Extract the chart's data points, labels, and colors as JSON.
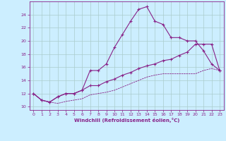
{
  "xlabel": "Windchill (Refroidissement éolien,°C)",
  "bg_color": "#cceeff",
  "grid_color": "#aacccc",
  "line_color": "#882288",
  "xlim": [
    -0.5,
    23.5
  ],
  "ylim": [
    9.5,
    26
  ],
  "xticks": [
    0,
    1,
    2,
    3,
    4,
    5,
    6,
    7,
    8,
    9,
    10,
    11,
    12,
    13,
    14,
    15,
    16,
    17,
    18,
    19,
    20,
    21,
    22,
    23
  ],
  "yticks": [
    10,
    12,
    14,
    16,
    18,
    20,
    22,
    24
  ],
  "line1_x": [
    0,
    1,
    2,
    3,
    4,
    5,
    6,
    7,
    8,
    9,
    10,
    11,
    12,
    13,
    14,
    15,
    16,
    17,
    18,
    19,
    20,
    21,
    22,
    23
  ],
  "line1_y": [
    12,
    11,
    10.7,
    11.5,
    12,
    12,
    12.5,
    15.5,
    15.5,
    16.5,
    19,
    21,
    23,
    24.8,
    25.2,
    23,
    22.5,
    20.5,
    20.5,
    20,
    20,
    18.5,
    16.5,
    15.5
  ],
  "line2_x": [
    0,
    1,
    2,
    3,
    4,
    5,
    6,
    7,
    8,
    9,
    10,
    11,
    12,
    13,
    14,
    15,
    16,
    17,
    18,
    19,
    20,
    21,
    22,
    23
  ],
  "line2_y": [
    12,
    11,
    10.7,
    11.5,
    12,
    12,
    12.5,
    13.2,
    13.2,
    13.8,
    14.2,
    14.8,
    15.2,
    15.8,
    16.2,
    16.5,
    17,
    17.2,
    17.8,
    18.3,
    19.5,
    19.5,
    19.5,
    15.5
  ],
  "line3_x": [
    0,
    1,
    2,
    3,
    4,
    5,
    6,
    7,
    8,
    9,
    10,
    11,
    12,
    13,
    14,
    15,
    16,
    17,
    18,
    19,
    20,
    21,
    22,
    23
  ],
  "line3_y": [
    12,
    11,
    10.7,
    10.5,
    10.8,
    11,
    11.2,
    11.8,
    12,
    12.2,
    12.5,
    13,
    13.5,
    14,
    14.5,
    14.8,
    15,
    15,
    15,
    15,
    15,
    15.5,
    15.8,
    15.5
  ]
}
